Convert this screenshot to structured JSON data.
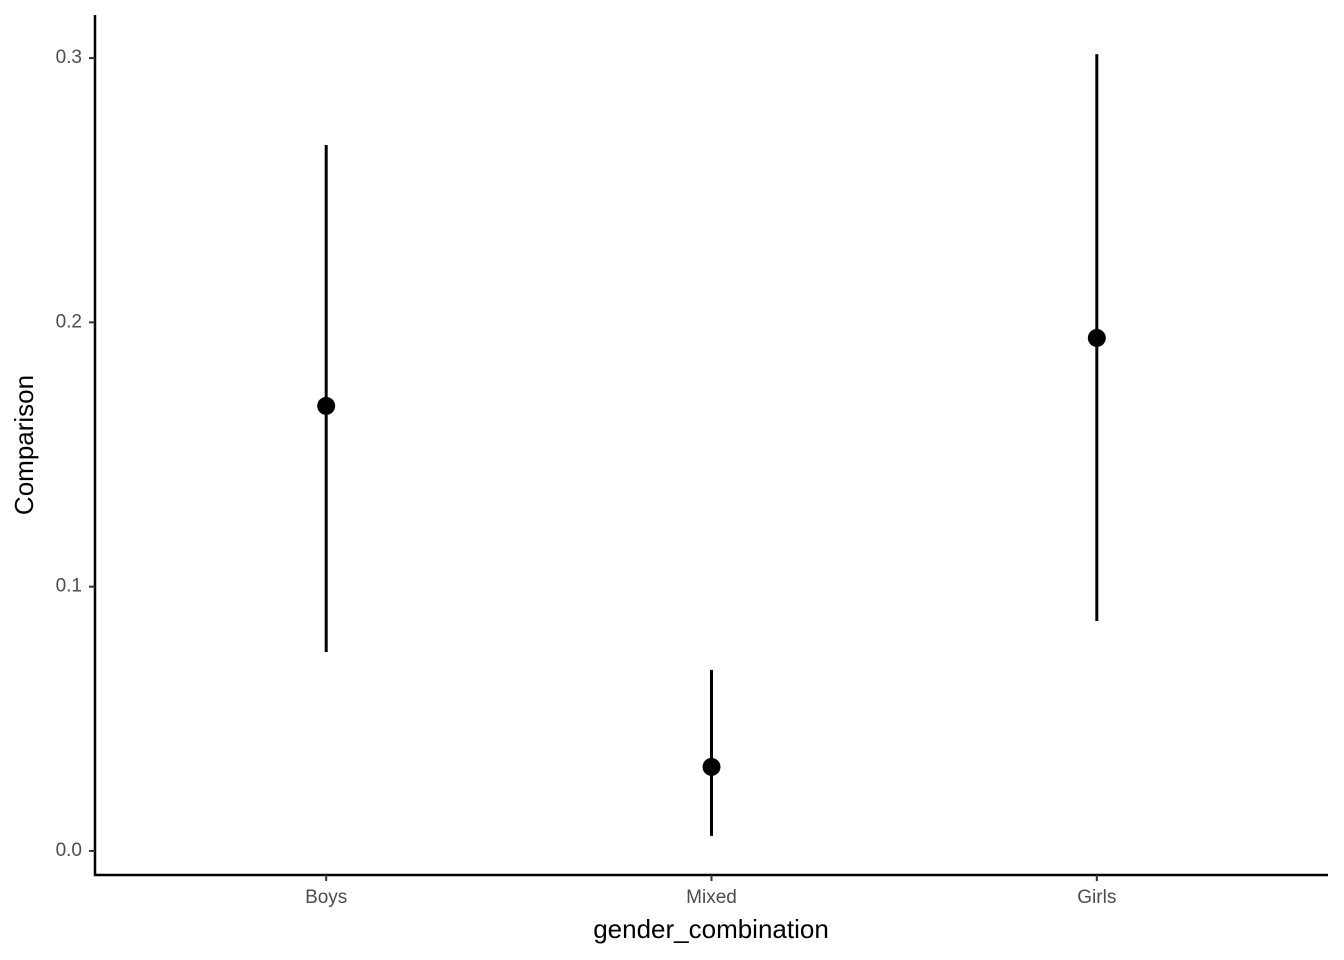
{
  "chart_data": {
    "type": "pointrange",
    "x_label": "gender_combination",
    "y_label": "Comparison",
    "categories": [
      "Boys",
      "Mixed",
      "Girls"
    ],
    "series": [
      {
        "color": "#000000",
        "values": [
          0.1684,
          0.0318,
          0.1941
        ],
        "lower": [
          0.0753,
          0.0057,
          0.087
        ],
        "upper": [
          0.2671,
          0.0685,
          0.3015
        ]
      }
    ],
    "ylim": [
      -0.0091,
      0.3163
    ],
    "yticks": [
      {
        "value": 0,
        "label": "0.0"
      },
      0.1,
      0.2,
      0.3
    ],
    "grid": false
  }
}
